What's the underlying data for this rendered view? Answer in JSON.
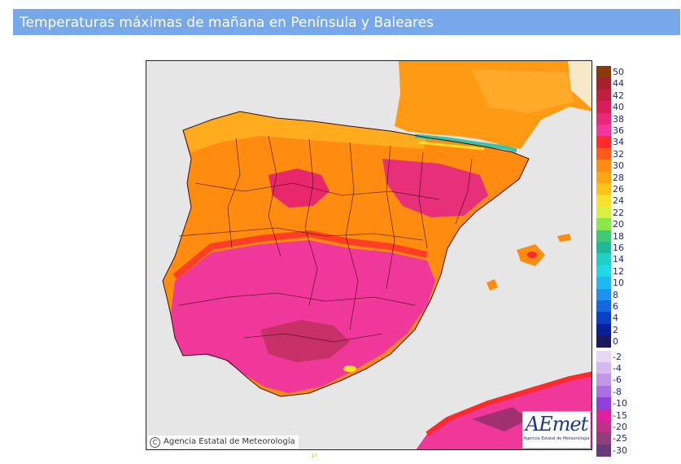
{
  "header": {
    "title": "Temperaturas máximas de mañana en Península y Baleares"
  },
  "map": {
    "sea_color": "#e6e6e6",
    "credit": {
      "icon": "copyright-icon",
      "symbol": "C",
      "text": "Agencia Estatal de Meteorología"
    },
    "logo": {
      "brand": "AEmet",
      "subtitle": "Agencia Estatal de Meteorología"
    },
    "bottom_mark": "1º"
  },
  "legend": {
    "items": [
      {
        "label": "50",
        "color": "#8b3a10"
      },
      {
        "label": "44",
        "color": "#a8202e"
      },
      {
        "label": "42",
        "color": "#c02040"
      },
      {
        "label": "40",
        "color": "#d81e5a"
      },
      {
        "label": "38",
        "color": "#e8287a"
      },
      {
        "label": "36",
        "color": "#f0389a"
      },
      {
        "label": "34",
        "color": "#ff2a2a"
      },
      {
        "label": "32",
        "color": "#ff5a1e"
      },
      {
        "label": "30",
        "color": "#ff8a14"
      },
      {
        "label": "28",
        "color": "#ffa514"
      },
      {
        "label": "26",
        "color": "#ffc21a"
      },
      {
        "label": "24",
        "color": "#ffe02a"
      },
      {
        "label": "22",
        "color": "#d8f040"
      },
      {
        "label": "20",
        "color": "#8ae84a"
      },
      {
        "label": "18",
        "color": "#40c87a"
      },
      {
        "label": "16",
        "color": "#20b89a"
      },
      {
        "label": "14",
        "color": "#20d0c8"
      },
      {
        "label": "12",
        "color": "#20d8e8"
      },
      {
        "label": "10",
        "color": "#20b8f0"
      },
      {
        "label": "8",
        "color": "#1e90f0"
      },
      {
        "label": "6",
        "color": "#1468e0"
      },
      {
        "label": "4",
        "color": "#0a40c8"
      },
      {
        "label": "2",
        "color": "#0a1ea0"
      },
      {
        "label": "0",
        "color": "#1a1a60"
      },
      {
        "label": "-2",
        "color": "#e8d8f8"
      },
      {
        "label": "-4",
        "color": "#d8b8f0"
      },
      {
        "label": "-6",
        "color": "#c098e8"
      },
      {
        "label": "-8",
        "color": "#a870e0"
      },
      {
        "label": "-10",
        "color": "#9040d8"
      },
      {
        "label": "-15",
        "color": "#e020a0"
      },
      {
        "label": "-20",
        "color": "#c0308a"
      },
      {
        "label": "-25",
        "color": "#904078"
      },
      {
        "label": "-30",
        "color": "#6a3a78"
      }
    ]
  }
}
